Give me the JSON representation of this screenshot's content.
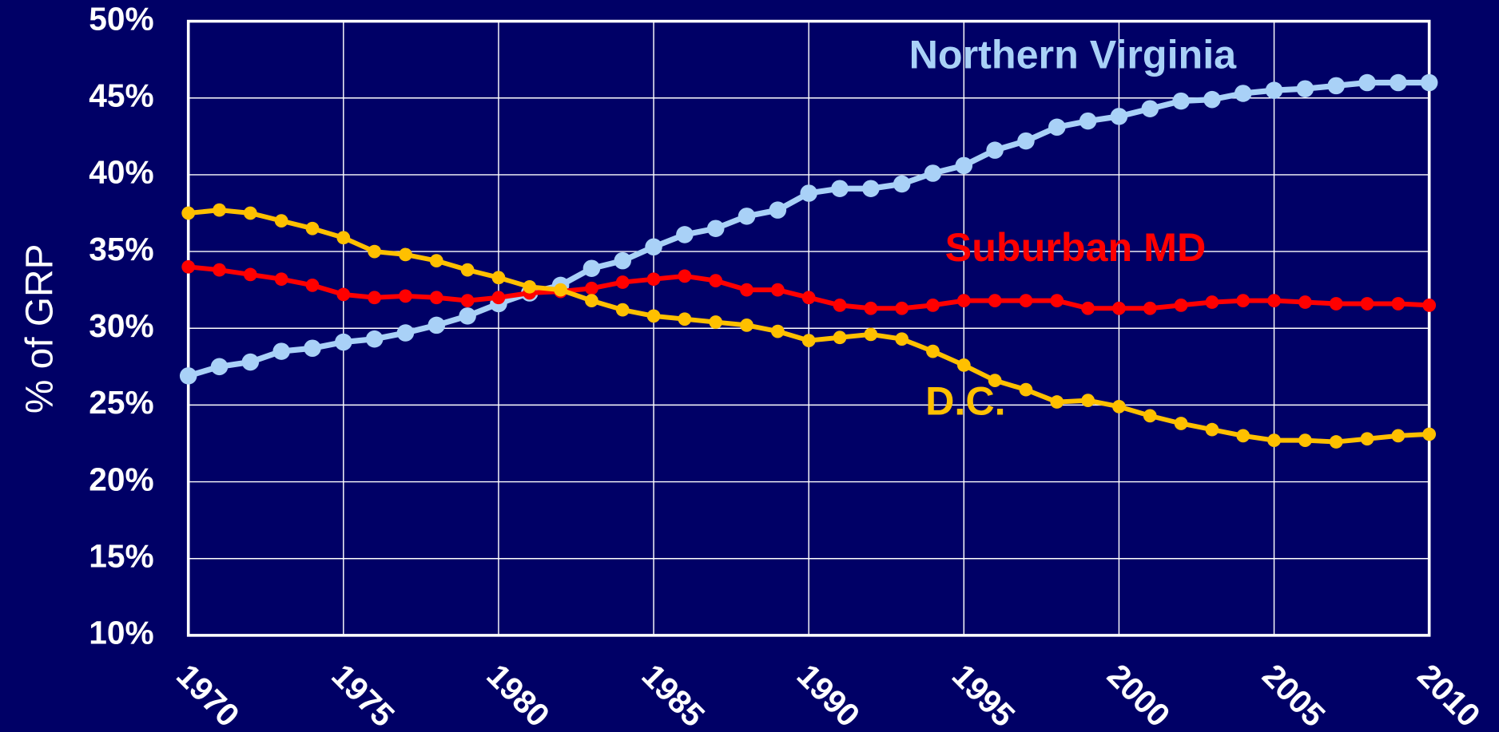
{
  "chart_data": {
    "type": "line",
    "ylabel": "% of GRP",
    "x": [
      1970,
      1971,
      1972,
      1973,
      1974,
      1975,
      1976,
      1977,
      1978,
      1979,
      1980,
      1981,
      1982,
      1983,
      1984,
      1985,
      1986,
      1987,
      1988,
      1989,
      1990,
      1991,
      1992,
      1993,
      1994,
      1995,
      1996,
      1997,
      1998,
      1999,
      2000,
      2001,
      2002,
      2003,
      2004,
      2005,
      2006,
      2007,
      2008,
      2009,
      2010
    ],
    "series": [
      {
        "name": "Northern Virginia",
        "color": "#a9d1f7",
        "values": [
          26.9,
          27.5,
          27.8,
          28.5,
          28.7,
          29.1,
          29.3,
          29.7,
          30.2,
          30.8,
          31.6,
          32.3,
          32.8,
          33.9,
          34.4,
          35.3,
          36.1,
          36.5,
          37.3,
          37.7,
          38.8,
          39.1,
          39.1,
          39.4,
          40.1,
          40.6,
          41.6,
          42.2,
          43.1,
          43.5,
          43.8,
          44.3,
          44.8,
          44.9,
          45.3,
          45.5,
          45.6,
          45.8,
          46.0,
          46.0,
          46.0
        ]
      },
      {
        "name": "Suburban MD",
        "color": "#ff0000",
        "values": [
          34.0,
          33.8,
          33.5,
          33.2,
          32.8,
          32.2,
          32.0,
          32.1,
          32.0,
          31.8,
          32.0,
          32.3,
          32.4,
          32.6,
          33.0,
          33.2,
          33.4,
          33.1,
          32.5,
          32.5,
          32.0,
          31.5,
          31.3,
          31.3,
          31.5,
          31.8,
          31.8,
          31.8,
          31.8,
          31.3,
          31.3,
          31.3,
          31.5,
          31.7,
          31.8,
          31.8,
          31.7,
          31.6,
          31.6,
          31.6,
          31.5
        ]
      },
      {
        "name": "D.C.",
        "color": "#ffc000",
        "values": [
          37.5,
          37.7,
          37.5,
          37.0,
          36.5,
          35.9,
          35.0,
          34.8,
          34.4,
          33.8,
          33.3,
          32.7,
          32.5,
          31.8,
          31.2,
          30.8,
          30.6,
          30.4,
          30.2,
          29.8,
          29.2,
          29.4,
          29.6,
          29.3,
          28.5,
          27.6,
          26.6,
          26.0,
          25.2,
          25.3,
          24.9,
          24.3,
          23.8,
          23.4,
          23.0,
          22.7,
          22.7,
          22.6,
          22.8,
          23.0,
          23.1
        ]
      }
    ],
    "xlim": [
      1970,
      2010
    ],
    "xticks": [
      1970,
      1975,
      1980,
      1985,
      1990,
      1995,
      2000,
      2005,
      2010
    ],
    "ylim": [
      10,
      50
    ],
    "yticks": [
      {
        "value": 10,
        "label": "10%"
      },
      {
        "value": 15,
        "label": "15%"
      },
      {
        "value": 20,
        "label": "20%"
      },
      {
        "value": 25,
        "label": "25%"
      },
      {
        "value": 30,
        "label": "30%"
      },
      {
        "value": 35,
        "label": "35%"
      },
      {
        "value": 40,
        "label": "40%"
      },
      {
        "value": 45,
        "label": "45%"
      },
      {
        "value": 50,
        "label": "50%"
      }
    ],
    "grid": true
  }
}
